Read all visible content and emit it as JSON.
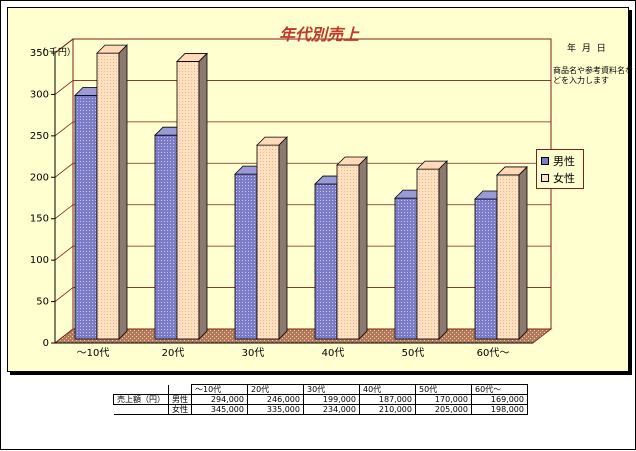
{
  "chart_data": {
    "type": "bar",
    "title": "年代別売上",
    "unit_label": "（ 千円）",
    "categories": [
      "～10代",
      "20代",
      "30代",
      "40代",
      "50代",
      "60代～"
    ],
    "series": [
      {
        "name": "男性",
        "values": [
          294,
          246,
          199,
          187,
          170,
          169
        ],
        "color": "#7b7bc8"
      },
      {
        "name": "女性",
        "values": [
          345,
          335,
          234,
          210,
          205,
          198
        ],
        "color": "#ffe1c2"
      }
    ],
    "y_ticks": [
      "0",
      "50",
      "100",
      "150",
      "200",
      "250",
      "300",
      "350"
    ],
    "ylim": [
      0,
      350
    ],
    "grid": true,
    "legend_position": "right",
    "style": "3d-column"
  },
  "side": {
    "date_label": "年 月 日",
    "note": "商品名や参考資料名などを入力します"
  },
  "legend": {
    "male": "男性",
    "female": "女性"
  },
  "table": {
    "row_header": "売上額（円）",
    "categories": [
      "～10代",
      "20代",
      "30代",
      "40代",
      "50代",
      "60代～"
    ],
    "rows": [
      {
        "label": "男性",
        "values": [
          "294,000",
          "246,000",
          "199,000",
          "187,000",
          "170,000",
          "169,000"
        ]
      },
      {
        "label": "女性",
        "values": [
          "345,000",
          "335,000",
          "234,000",
          "210,000",
          "205,000",
          "198,000"
        ]
      }
    ]
  }
}
